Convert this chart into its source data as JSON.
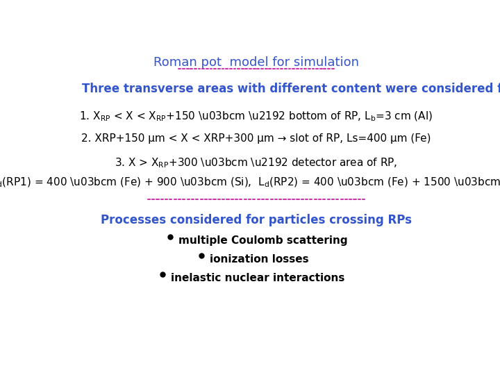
{
  "title": "Roman pot  model for simulation",
  "title_color": "#3355CC",
  "title_divider_color": "#CC33AA",
  "subtitle": "Three transverse areas with different content were considered for RPs",
  "subtitle_color": "#3355CC",
  "separator2_color": "#CC33AA",
  "section2_title": "Processes considered for particles crossing RPs",
  "section2_title_color": "#3355CC",
  "bullet_items": [
    "multiple Coulomb scattering",
    "ionization losses",
    "inelastic nuclear interactions"
  ],
  "background_color": "#ffffff",
  "text_color": "#000000",
  "font_size_title": 13,
  "font_size_subtitle": 12,
  "font_size_body": 11,
  "font_size_section2": 12
}
